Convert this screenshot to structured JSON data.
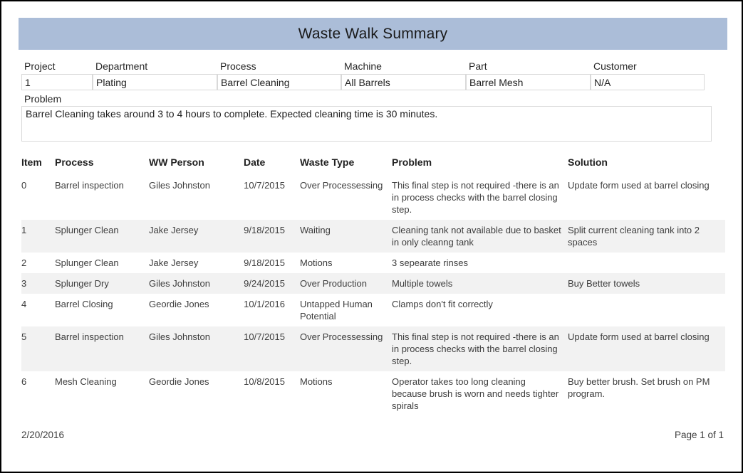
{
  "title": "Waste Walk Summary",
  "fields": [
    {
      "label": "Project",
      "value": "1"
    },
    {
      "label": "Department",
      "value": "Plating"
    },
    {
      "label": "Process",
      "value": "Barrel Cleaning"
    },
    {
      "label": "Machine",
      "value": "All Barrels"
    },
    {
      "label": "Part",
      "value": "Barrel Mesh"
    },
    {
      "label": "Customer",
      "value": "N/A"
    }
  ],
  "problem": {
    "label": "Problem",
    "value": "Barrel Cleaning takes around 3 to 4 hours to complete. Expected cleaning time is 30 minutes."
  },
  "table": {
    "columns": [
      "Item",
      "Process",
      "WW Person",
      "Date",
      "Waste Type",
      "Problem",
      "Solution"
    ],
    "rows": [
      [
        "0",
        "Barrel inspection",
        "Giles Johnston",
        "10/7/2015",
        "Over Processessing",
        "This final step is not required -there is an in process checks with the barrel closing step.",
        "Update form used at barrel closing"
      ],
      [
        "1",
        "Splunger Clean",
        "Jake Jersey",
        "9/18/2015",
        "Waiting",
        "Cleaning tank not available due to basket in only cleanng tank",
        "Split current cleaning tank into 2 spaces"
      ],
      [
        "2",
        "Splunger Clean",
        "Jake Jersey",
        "9/18/2015",
        "Motions",
        "3 sepearate rinses",
        ""
      ],
      [
        "3",
        "Splunger Dry",
        "Giles Johnston",
        "9/24/2015",
        "Over Production",
        "Multiple towels",
        "Buy Better towels"
      ],
      [
        "4",
        "Barrel Closing",
        "Geordie Jones",
        "10/1/2016",
        "Untapped Human Potential",
        "Clamps don't fit correctly",
        ""
      ],
      [
        "5",
        "Barrel inspection",
        "Giles Johnston",
        "10/7/2015",
        "Over Processessing",
        "This final step is not required -there is an in process checks with the barrel closing step.",
        "Update form used at barrel closing"
      ],
      [
        "6",
        "Mesh Cleaning",
        "Geordie Jones",
        "10/8/2015",
        "Motions",
        "Operator takes too long cleaning because brush is worn and needs tighter spirals",
        "Buy better brush. Set brush on PM program."
      ]
    ]
  },
  "footer": {
    "date": "2/20/2016",
    "page": "Page 1 of 1"
  },
  "colors": {
    "banner": "#abbdd8",
    "stripe": "#f2f2f2",
    "border": "#d9d9d9",
    "text": "#3d3d3d"
  }
}
